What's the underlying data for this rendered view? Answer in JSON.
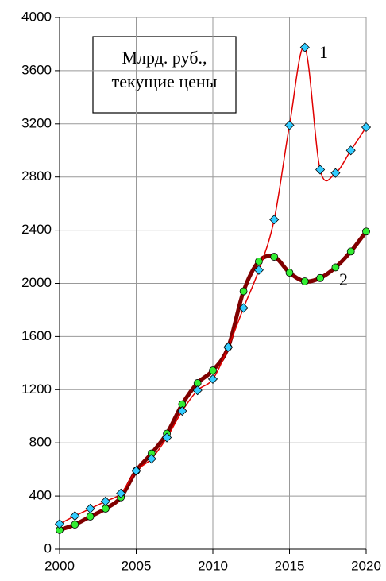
{
  "chart_data": {
    "type": "line",
    "annotation_box": [
      "Млрд. руб.,",
      "текущие цены"
    ],
    "x": [
      2000,
      2001,
      2002,
      2003,
      2004,
      2005,
      2006,
      2007,
      2008,
      2009,
      2010,
      2011,
      2012,
      2013,
      2014,
      2015,
      2016,
      2017,
      2018,
      2019,
      2020
    ],
    "series": [
      {
        "name": "1",
        "color": "#e00000",
        "marker_color": "#33ccff",
        "marker": "diamond",
        "values": [
          190,
          250,
          305,
          360,
          420,
          590,
          680,
          840,
          1040,
          1195,
          1280,
          1520,
          1815,
          2100,
          2480,
          3190,
          3775,
          2855,
          2830,
          3000,
          3175
        ]
      },
      {
        "name": "2",
        "color": "#800000",
        "marker_color": "#33ee33",
        "marker": "circle",
        "values": [
          145,
          185,
          245,
          305,
          390,
          590,
          720,
          870,
          1090,
          1250,
          1345,
          1520,
          1940,
          2165,
          2200,
          2080,
          2015,
          2040,
          2120,
          2240,
          2390
        ]
      }
    ],
    "xlim": [
      2000,
      2020
    ],
    "xticks": [
      2000,
      2005,
      2010,
      2015,
      2020
    ],
    "ylim": [
      0,
      4000
    ],
    "yticks": [
      0,
      400,
      800,
      1200,
      1600,
      2000,
      2400,
      2800,
      3200,
      3600,
      4000
    ],
    "grid": true
  }
}
